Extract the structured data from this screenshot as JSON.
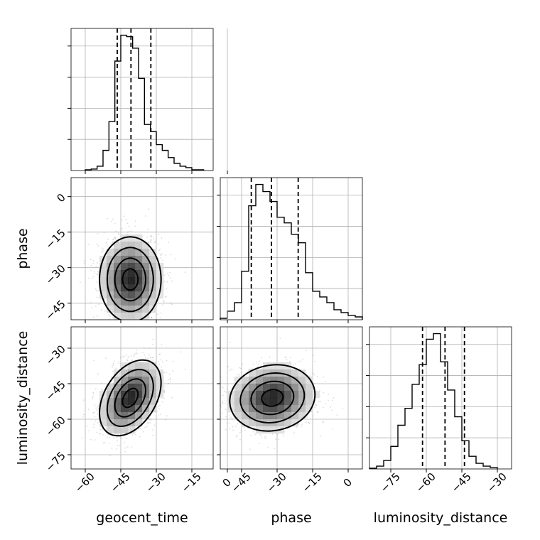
{
  "chart_data": {
    "type": "corner",
    "parameters": [
      "geocent_time",
      "phase",
      "luminosity_distance"
    ],
    "grid": true,
    "quantiles": [
      0.16,
      0.5,
      0.84
    ],
    "marginals": [
      {
        "parameter": "geocent_time",
        "xlim": [
          -66,
          -6
        ],
        "bin_start": -60,
        "bin_width": 2.5,
        "counts": [
          0.5,
          1,
          3,
          14,
          34,
          76,
          94,
          93,
          85,
          64,
          32,
          27,
          18,
          14,
          9,
          5,
          3,
          2,
          0.5,
          0.5
        ],
        "quantile_values": [
          -46.5,
          -40.7,
          -32.3
        ]
      },
      {
        "parameter": "phase",
        "xlim": [
          -54,
          6
        ],
        "bin_start": -54,
        "bin_width": 3,
        "counts": [
          1,
          6,
          12,
          34,
          80,
          95,
          90,
          83,
          72,
          68,
          60,
          54,
          33,
          20,
          16,
          12,
          7,
          5,
          3,
          2
        ],
        "quantile_values": [
          -40.9,
          -32.4,
          -21.1
        ]
      },
      {
        "parameter": "luminosity_distance",
        "xlim": [
          -84,
          -24
        ],
        "bin_start": -84,
        "bin_width": 3,
        "counts": [
          0.5,
          2,
          6,
          16,
          31,
          43,
          60,
          74,
          92,
          96,
          76,
          56,
          37,
          20,
          9,
          4,
          2,
          1
        ],
        "quantile_values": [
          -61.6,
          -52.1,
          -43.9
        ]
      }
    ],
    "joints": [
      {
        "x": "geocent_time",
        "y": "phase",
        "xlim": [
          -66,
          -6
        ],
        "ylim": [
          -52,
          8
        ],
        "center": [
          -41,
          -35
        ],
        "spread": [
          6.5,
          9
        ],
        "correlation": 0
      },
      {
        "x": "geocent_time",
        "y": "luminosity_distance",
        "xlim": [
          -66,
          -6
        ],
        "ylim": [
          -81,
          -21
        ],
        "center": [
          -41,
          -51
        ],
        "spread": [
          6.5,
          8
        ],
        "correlation": 0.4
      },
      {
        "x": "phase",
        "y": "luminosity_distance",
        "xlim": [
          -54,
          6
        ],
        "ylim": [
          -81,
          -21
        ],
        "center": [
          -32,
          -51
        ],
        "spread": [
          9,
          7
        ],
        "correlation": 0.1
      }
    ],
    "ticks": {
      "geocent_time": {
        "values": [
          -60,
          -45,
          -30,
          -15,
          0
        ],
        "labels": [
          "−60",
          "−45",
          "−30",
          "−15",
          "0"
        ]
      },
      "phase": {
        "values": [
          -45,
          -30,
          -15,
          0
        ],
        "labels": [
          "−45",
          "−30",
          "−15",
          "0"
        ]
      },
      "luminosity_distance": {
        "values": [
          -75,
          -60,
          -45,
          -30
        ],
        "labels": [
          "−75",
          "−60",
          "−45",
          "−30"
        ]
      }
    }
  }
}
